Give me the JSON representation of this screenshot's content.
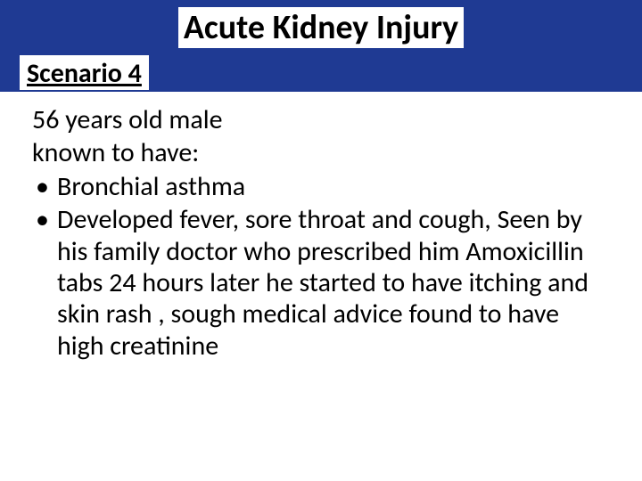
{
  "header": {
    "title": "Acute Kidney Injury",
    "scenario_label": "Scenario 4",
    "band_color": "#1f3a93",
    "title_fontsize": 38,
    "scenario_fontsize": 30
  },
  "content": {
    "intro_lines": [
      "56 years old male",
      "known to have:"
    ],
    "bullets": [
      "Bronchial asthma",
      "Developed fever, sore throat  and cough, Seen by his family doctor who prescribed him Amoxicillin tabs 24 hours later he started to have itching and skin rash , sough medical advice found to have high creatinine"
    ],
    "body_fontsize": 30,
    "line_height": 1.18,
    "text_color": "#000000"
  }
}
